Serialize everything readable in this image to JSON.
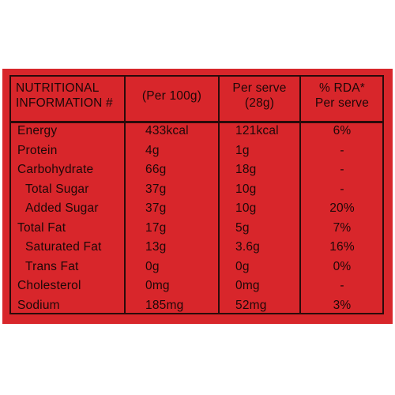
{
  "table": {
    "header": [
      [
        "NUTRITIONAL",
        "INFORMATION #"
      ],
      [
        "(Per 100g)"
      ],
      [
        "Per serve",
        "(28g)"
      ],
      [
        "% RDA*",
        "Per serve"
      ]
    ],
    "rows": [
      [
        "Energy",
        "433kcal",
        "121kcal",
        "6%"
      ],
      [
        "Protein",
        "4g",
        "1g",
        "-"
      ],
      [
        "Carbohydrate",
        "66g",
        "18g",
        "-"
      ],
      [
        "Total Sugar",
        "37g",
        "10g",
        "-"
      ],
      [
        "Added Sugar",
        "37g",
        "10g",
        "20%"
      ],
      [
        "Total Fat",
        "17g",
        "5g",
        "7%"
      ],
      [
        "Saturated Fat",
        "13g",
        "3.6g",
        "16%"
      ],
      [
        "Trans Fat",
        "0g",
        "0g",
        "0%"
      ],
      [
        "Cholesterol",
        "0mg",
        "0mg",
        "-"
      ],
      [
        "Sodium",
        "185mg",
        "52mg",
        "3%"
      ]
    ]
  }
}
